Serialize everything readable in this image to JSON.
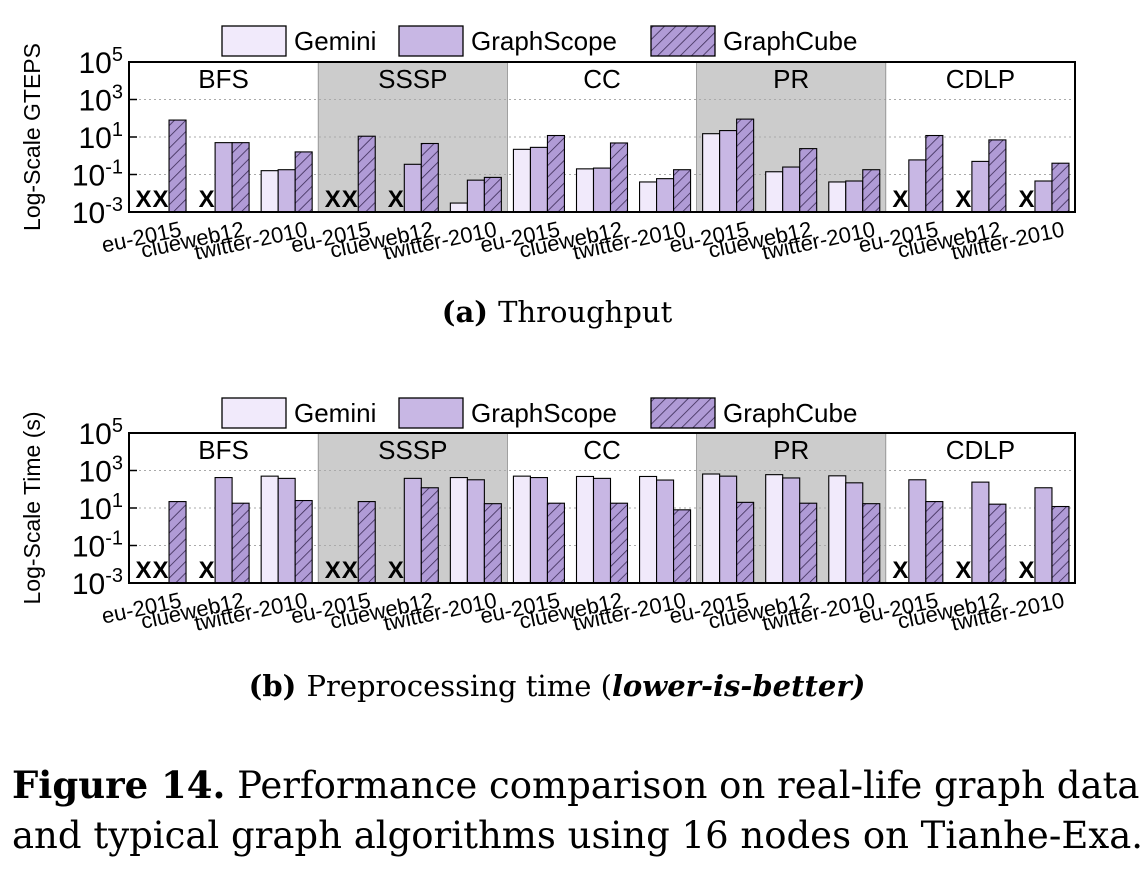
{
  "legend": {
    "labels": [
      "Gemini",
      "GraphScope",
      "GraphCube"
    ]
  },
  "categories": [
    "eu-2015",
    "clueweb12",
    "twitter-2010"
  ],
  "missing_marker": "X",
  "colors": {
    "gemini": "#f1eafb",
    "graphscope": "#c8b7e4",
    "graphcube": "#b09bd6",
    "shade": "#cccccc",
    "grid": "#aaaaaa"
  },
  "chart_data": [
    {
      "type": "bar",
      "panel_label": "(a)",
      "panel_title": "Throughput",
      "title_italic": "",
      "ylabel": "Log-Scale GTEPS",
      "yscale": "log",
      "ylim": [
        0.001,
        100000
      ],
      "y_ticks": [
        {
          "base": "10",
          "exp": "-3"
        },
        {
          "base": "10",
          "exp": "-1"
        },
        {
          "base": "10",
          "exp": "1"
        },
        {
          "base": "10",
          "exp": "3"
        },
        {
          "base": "10",
          "exp": "5"
        }
      ],
      "groups": [
        {
          "name": "BFS",
          "shaded": false,
          "series": [
            {
              "name": "Gemini",
              "values": [
                null,
                null,
                0.16
              ]
            },
            {
              "name": "GraphScope",
              "values": [
                null,
                5,
                0.18
              ]
            },
            {
              "name": "GraphCube",
              "values": [
                80,
                5,
                1.6
              ]
            }
          ]
        },
        {
          "name": "SSSP",
          "shaded": true,
          "series": [
            {
              "name": "Gemini",
              "values": [
                null,
                null,
                0.003
              ]
            },
            {
              "name": "GraphScope",
              "values": [
                null,
                0.35,
                0.05
              ]
            },
            {
              "name": "GraphCube",
              "values": [
                11,
                4.5,
                0.07
              ]
            }
          ]
        },
        {
          "name": "CC",
          "shaded": false,
          "series": [
            {
              "name": "Gemini",
              "values": [
                2.2,
                0.2,
                0.04
              ]
            },
            {
              "name": "GraphScope",
              "values": [
                2.8,
                0.22,
                0.06
              ]
            },
            {
              "name": "GraphCube",
              "values": [
                12,
                4.8,
                0.18
              ]
            }
          ]
        },
        {
          "name": "PR",
          "shaded": true,
          "series": [
            {
              "name": "Gemini",
              "values": [
                15,
                0.14,
                0.04
              ]
            },
            {
              "name": "GraphScope",
              "values": [
                22,
                0.25,
                0.045
              ]
            },
            {
              "name": "GraphCube",
              "values": [
                90,
                2.4,
                0.18
              ]
            }
          ]
        },
        {
          "name": "CDLP",
          "shaded": false,
          "series": [
            {
              "name": "Gemini",
              "values": [
                null,
                null,
                null
              ]
            },
            {
              "name": "GraphScope",
              "values": [
                0.6,
                0.5,
                0.045
              ]
            },
            {
              "name": "GraphCube",
              "values": [
                12,
                7,
                0.4
              ]
            }
          ]
        }
      ]
    },
    {
      "type": "bar",
      "panel_label": "(b)",
      "panel_title": "Preprocessing time (",
      "title_italic": "lower-is-better)",
      "ylabel": "Log-Scale Time (s)",
      "yscale": "log",
      "ylim": [
        0.001,
        100000
      ],
      "y_ticks": [
        {
          "base": "10",
          "exp": "-3"
        },
        {
          "base": "10",
          "exp": "-1"
        },
        {
          "base": "10",
          "exp": "1"
        },
        {
          "base": "10",
          "exp": "3"
        },
        {
          "base": "10",
          "exp": "5"
        }
      ],
      "groups": [
        {
          "name": "BFS",
          "shaded": false,
          "series": [
            {
              "name": "Gemini",
              "values": [
                null,
                null,
                500
              ]
            },
            {
              "name": "GraphScope",
              "values": [
                null,
                420,
                380
              ]
            },
            {
              "name": "GraphCube",
              "values": [
                22,
                18,
                25
              ]
            }
          ]
        },
        {
          "name": "SSSP",
          "shaded": true,
          "series": [
            {
              "name": "Gemini",
              "values": [
                null,
                null,
                420
              ]
            },
            {
              "name": "GraphScope",
              "values": [
                null,
                380,
                320
              ]
            },
            {
              "name": "GraphCube",
              "values": [
                22,
                120,
                17
              ]
            }
          ]
        },
        {
          "name": "CC",
          "shaded": false,
          "series": [
            {
              "name": "Gemini",
              "values": [
                500,
                480,
                480
              ]
            },
            {
              "name": "GraphScope",
              "values": [
                420,
                380,
                310
              ]
            },
            {
              "name": "GraphCube",
              "values": [
                18,
                18,
                8
              ]
            }
          ]
        },
        {
          "name": "PR",
          "shaded": true,
          "series": [
            {
              "name": "Gemini",
              "values": [
                650,
                600,
                520
              ]
            },
            {
              "name": "GraphScope",
              "values": [
                500,
                400,
                220
              ]
            },
            {
              "name": "GraphCube",
              "values": [
                20,
                18,
                17
              ]
            }
          ]
        },
        {
          "name": "CDLP",
          "shaded": false,
          "series": [
            {
              "name": "Gemini",
              "values": [
                null,
                null,
                null
              ]
            },
            {
              "name": "GraphScope",
              "values": [
                320,
                240,
                120
              ]
            },
            {
              "name": "GraphCube",
              "values": [
                22,
                16,
                12
              ]
            }
          ]
        }
      ]
    }
  ],
  "caption": {
    "label": "Figure 14.",
    "line1": " Performance comparison on real-life graph data",
    "line2": "and typical graph algorithms using 16 nodes on Tianhe-Exa."
  }
}
